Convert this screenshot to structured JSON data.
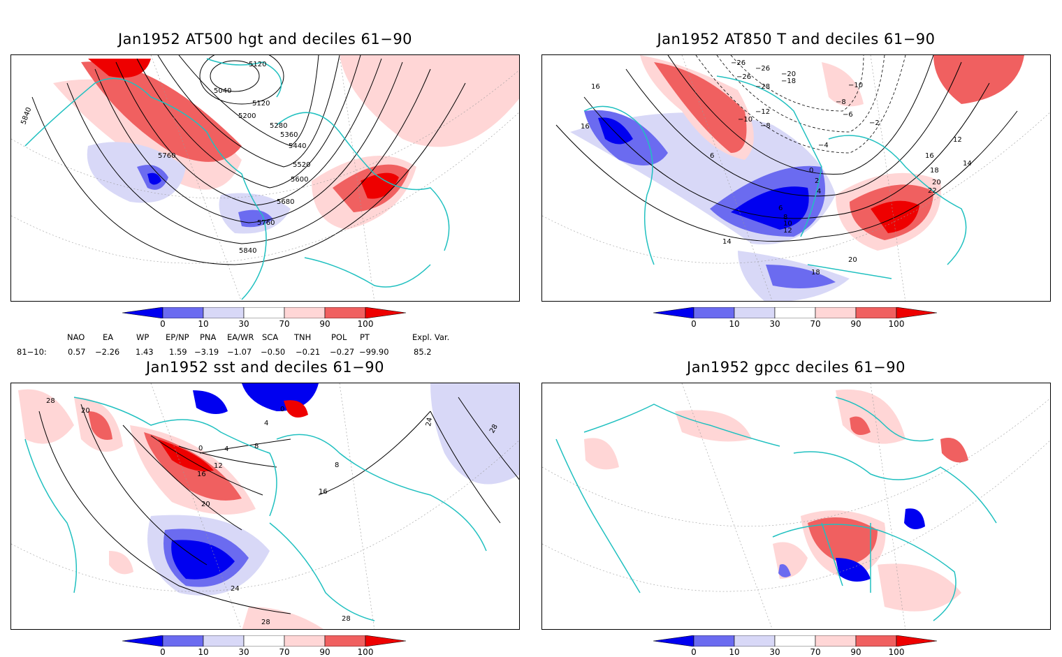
{
  "panels": [
    {
      "title": "Jan1952 AT500 hgt and deciles 61−90",
      "contour_labels": [
        "5120",
        "5040",
        "5120",
        "5200",
        "5280",
        "5360",
        "5440",
        "5520",
        "5600",
        "5680",
        "5760",
        "5760",
        "5840",
        "5840"
      ]
    },
    {
      "title": "Jan1952 AT850 T and deciles 61−90",
      "contour_labels": [
        "16",
        "16",
        "−26",
        "−26",
        "−26",
        "−20",
        "−28",
        "−18",
        "−10",
        "−12",
        "−10",
        "−8",
        "−8",
        "−6",
        "−2",
        "−4",
        "6",
        "0",
        "2",
        "4",
        "6",
        "8",
        "10",
        "12",
        "14",
        "12",
        "14",
        "16",
        "18",
        "20",
        "22",
        "20",
        "18"
      ]
    },
    {
      "title": "Jan1952 sst and deciles 61−90",
      "contour_labels": [
        "28",
        "20",
        "0",
        "4",
        "8",
        "12",
        "16",
        "20",
        "24",
        "28",
        "28",
        "24",
        "28",
        "16",
        "8",
        "0",
        "4"
      ]
    },
    {
      "title": "Jan1952 gpcc deciles 61−90",
      "contour_labels": []
    }
  ],
  "colorbar": {
    "ticks": [
      "0",
      "10",
      "30",
      "70",
      "90",
      "100"
    ],
    "colors": [
      "#0000f0",
      "#6b6bf0",
      "#d8d8f7",
      "#ffffff",
      "#ffd6d6",
      "#f06060",
      "#ee0000"
    ]
  },
  "indices": {
    "headers": [
      "NAO",
      "EA",
      "WP",
      "EP/NP",
      "PNA",
      "EA/WR",
      "SCA",
      "TNH",
      "POL",
      "PT",
      "Expl. Var."
    ],
    "row_label": "81−10:",
    "values": [
      "0.57",
      "−2.26",
      "1.43",
      "1.59",
      "−3.19",
      "−1.07",
      "−0.50",
      "−0.21",
      "−0.27",
      "−99.90",
      "85.2"
    ]
  }
}
